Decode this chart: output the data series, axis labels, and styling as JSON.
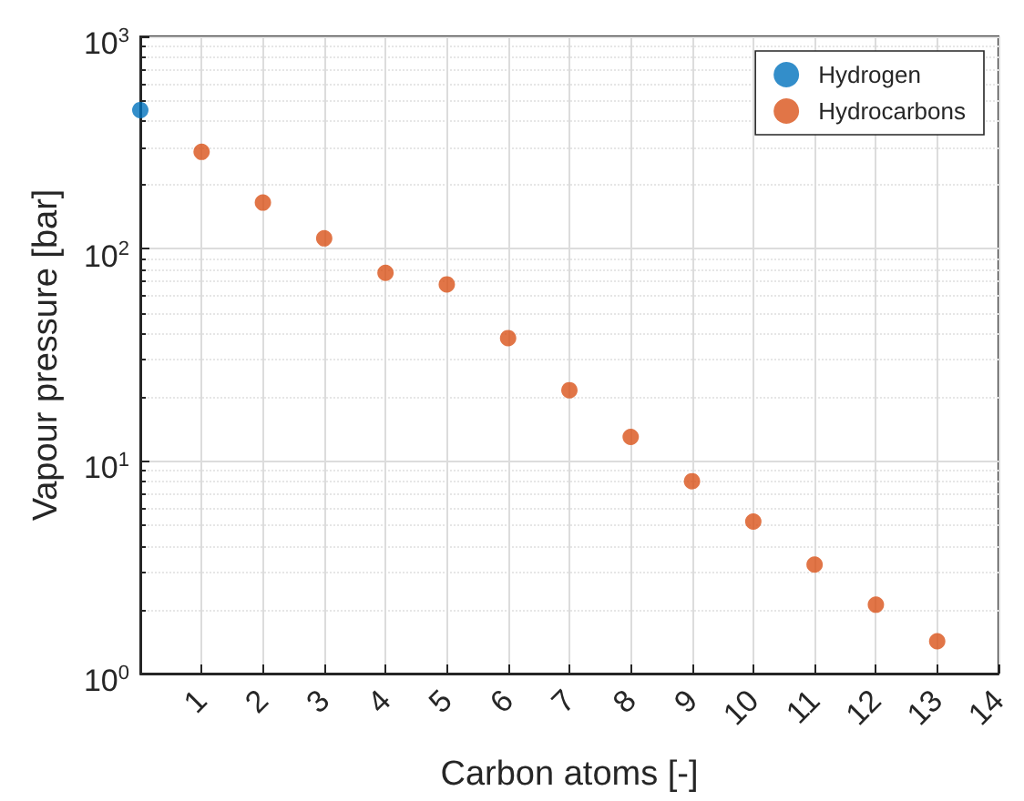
{
  "chart_data": {
    "type": "scatter",
    "xlabel": "Carbon atoms [-]",
    "ylabel": "Vapour pressure [bar]",
    "series": [
      {
        "name": "Hydrogen",
        "color": "#0072bd",
        "x": [
          0
        ],
        "values": [
          450
        ]
      },
      {
        "name": "Hydrocarbons",
        "color": "#d95319",
        "x": [
          1,
          2,
          3,
          4,
          5,
          6,
          7,
          8,
          9,
          10,
          11,
          12,
          13
        ],
        "values": [
          286,
          165,
          112,
          77,
          68,
          38,
          21.6,
          13,
          8.05,
          5.2,
          3.26,
          2.11,
          1.42
        ]
      }
    ],
    "xlim": [
      0,
      14
    ],
    "xticks": [
      1,
      2,
      3,
      4,
      5,
      6,
      7,
      8,
      9,
      10,
      11,
      12,
      13,
      14
    ],
    "ylim": [
      1,
      1000
    ],
    "yticks": [
      {
        "value": 1,
        "label": "10$^{0}$"
      },
      {
        "value": 10,
        "label": "10$^{1}$"
      },
      {
        "value": 100,
        "label": "10$^{2}$"
      },
      {
        "value": 1000,
        "label": "10$^{3}$"
      }
    ],
    "log": "y",
    "grid": true,
    "legend": "top right",
    "marker": "circle"
  }
}
